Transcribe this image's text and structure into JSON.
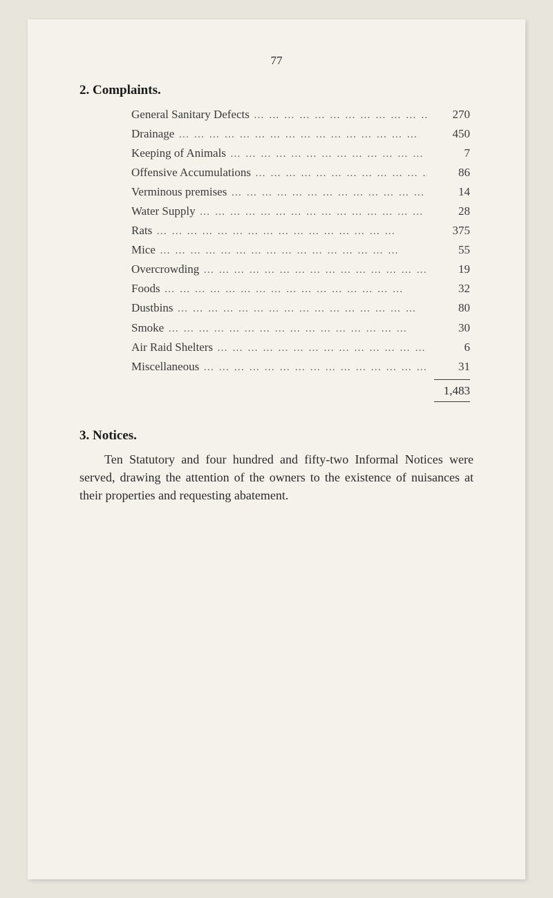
{
  "page_number": "77",
  "complaints": {
    "heading": "2. Complaints.",
    "items": [
      {
        "label": "General Sanitary Defects",
        "value": "270"
      },
      {
        "label": "Drainage",
        "value": "450"
      },
      {
        "label": "Keeping of Animals",
        "value": "7"
      },
      {
        "label": "Offensive Accumulations",
        "value": "86"
      },
      {
        "label": "Verminous premises",
        "value": "14"
      },
      {
        "label": "Water Supply",
        "value": "28"
      },
      {
        "label": "Rats",
        "value": "375"
      },
      {
        "label": "Mice",
        "value": "55"
      },
      {
        "label": "Overcrowding",
        "value": "19"
      },
      {
        "label": "Foods",
        "value": "32"
      },
      {
        "label": "Dustbins",
        "value": "80"
      },
      {
        "label": "Smoke",
        "value": "30"
      },
      {
        "label": "Air Raid Shelters",
        "value": "6"
      },
      {
        "label": "Miscellaneous",
        "value": "31"
      }
    ],
    "total": "1,483"
  },
  "notices": {
    "heading": "3. Notices.",
    "body": "Ten Statutory and four hundred and fifty-two Informal Notices were served, drawing the attention of the owners to the existence of nuisances at their properties and requesting abatement."
  },
  "colors": {
    "page_bg": "#f4f2ea",
    "outer_bg": "#e8e6dc",
    "text": "#2a2a2a"
  },
  "typography": {
    "body_fontsize_pt": 13,
    "heading_fontsize_pt": 14,
    "font_family": "Times New Roman"
  }
}
